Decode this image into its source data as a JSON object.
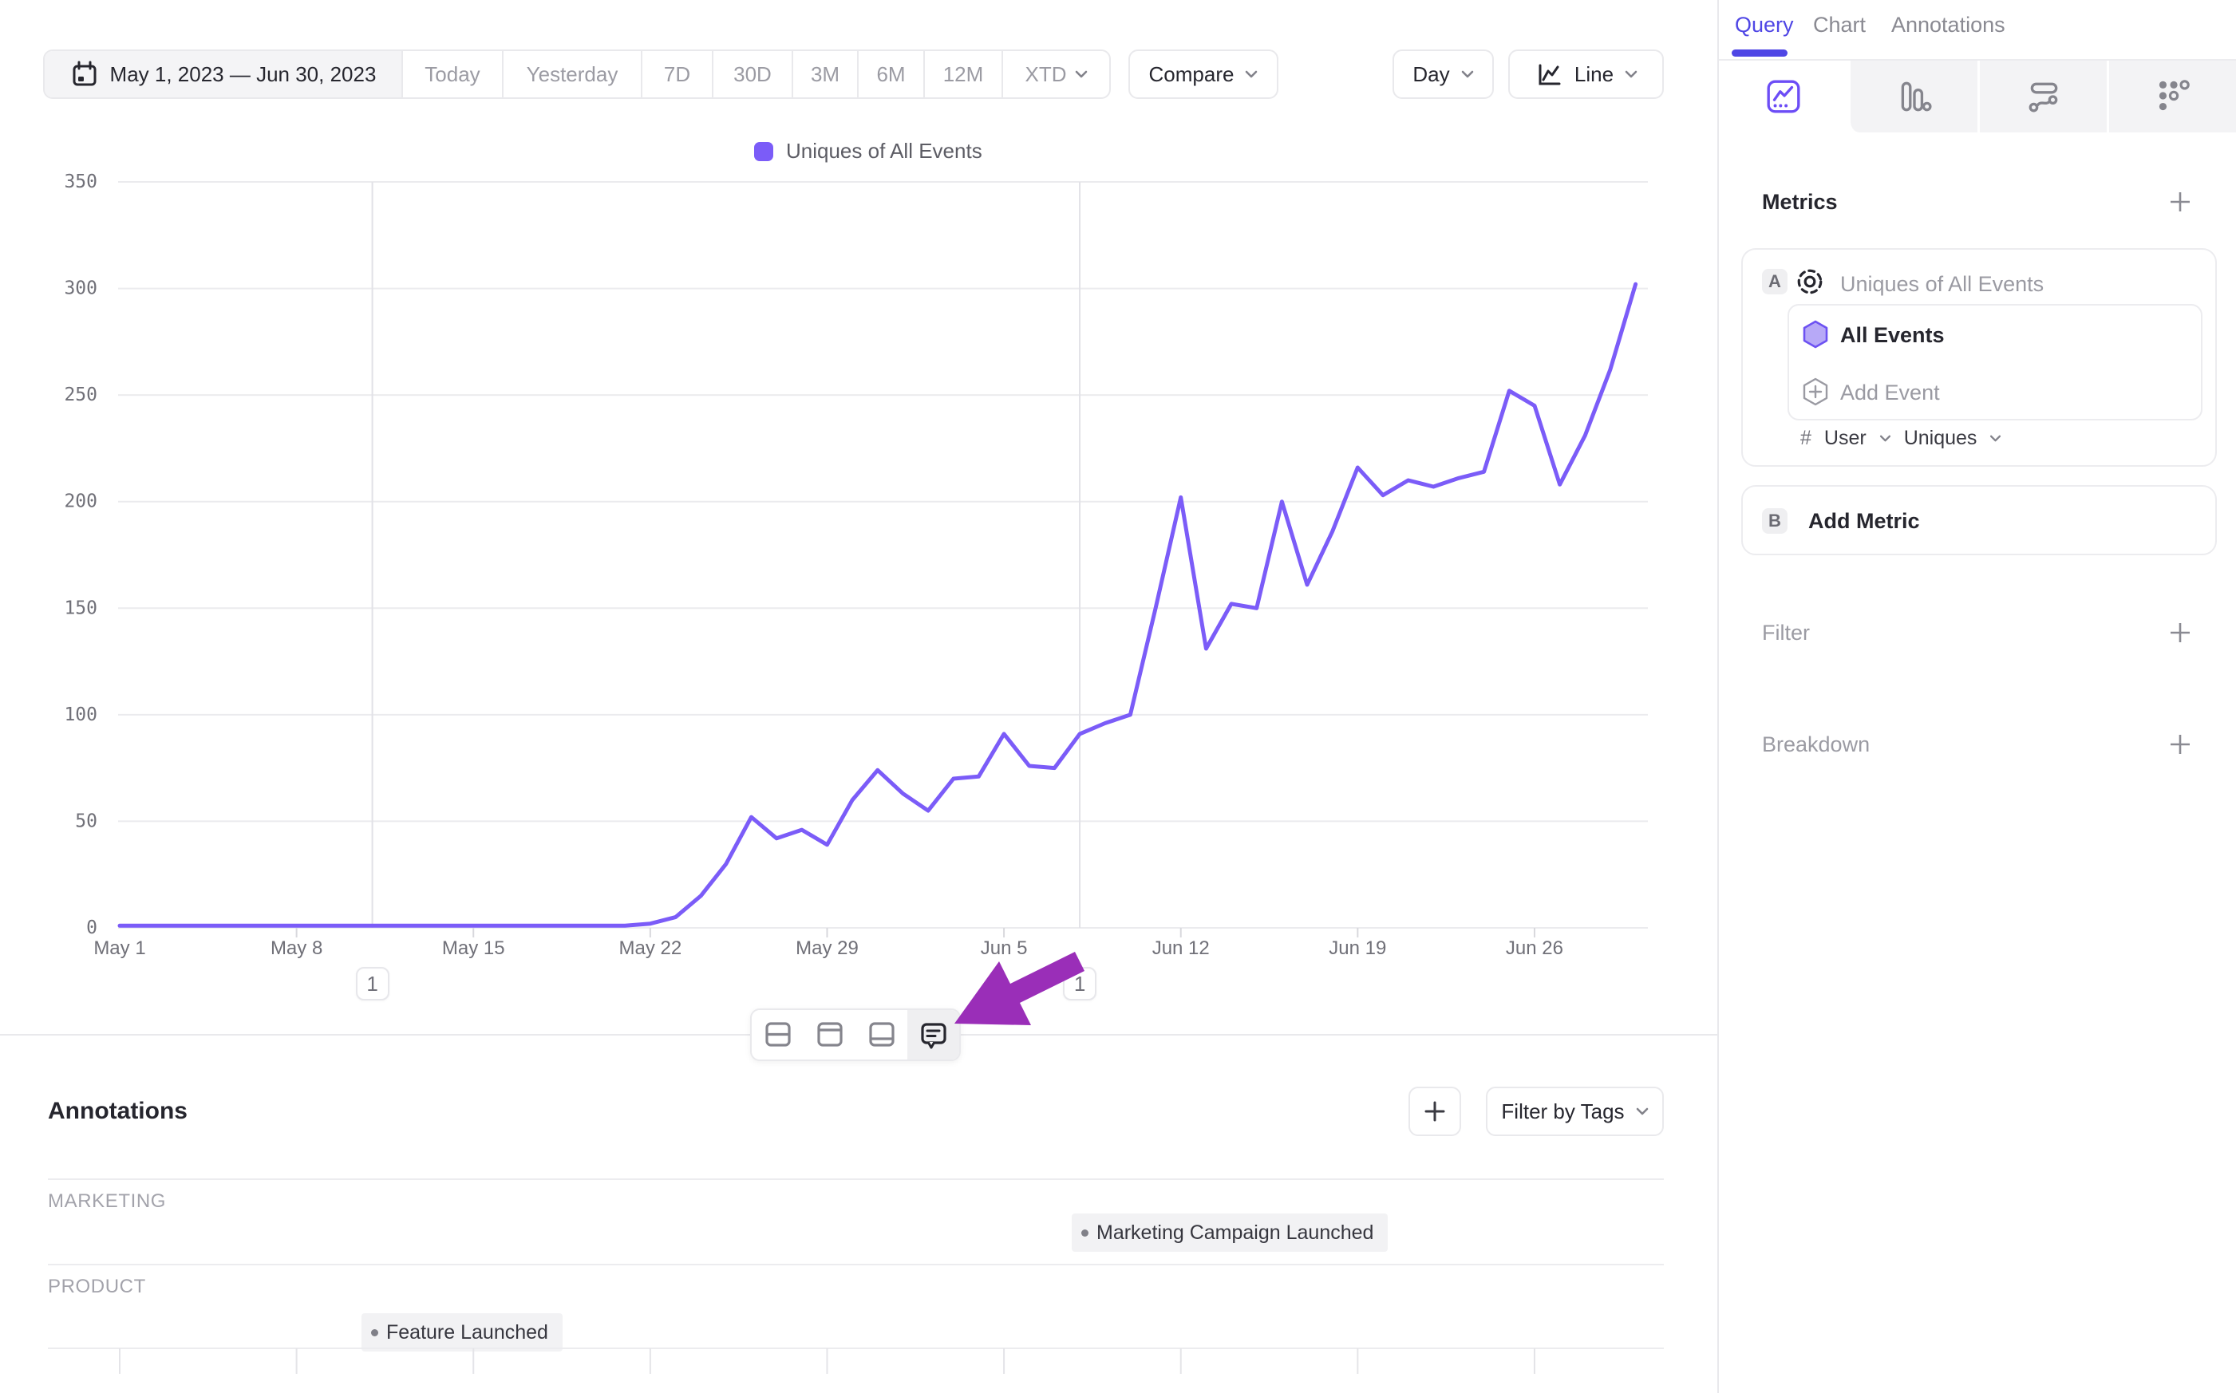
{
  "toolbar": {
    "date_range": "May 1, 2023 — Jun 30, 2023",
    "presets": [
      "Today",
      "Yesterday",
      "7D",
      "30D",
      "3M",
      "6M",
      "12M"
    ],
    "xtd_label": "XTD",
    "compare_label": "Compare",
    "granularity_label": "Day",
    "chart_type_label": "Line"
  },
  "legend": {
    "label": "Uniques of All Events"
  },
  "sidebar": {
    "tabs": {
      "query": "Query",
      "chart": "Chart",
      "annotations": "Annotations"
    },
    "metrics_title": "Metrics",
    "metric": {
      "letter": "A",
      "name": "Uniques of All Events",
      "event": "All Events",
      "add_event": "Add Event",
      "count_symbol": "#",
      "entity": "User",
      "aggregation": "Uniques"
    },
    "add_metric": {
      "letter": "B",
      "label": "Add Metric"
    },
    "filter_label": "Filter",
    "breakdown_label": "Breakdown"
  },
  "annotations_panel": {
    "title": "Annotations",
    "filter_by_tags": "Filter by Tags",
    "groups": [
      {
        "name": "MARKETING",
        "item": "Marketing Campaign Launched"
      },
      {
        "name": "PRODUCT",
        "item": "Feature Launched"
      }
    ]
  },
  "colors": {
    "accent_purple": "#4f46e5",
    "line_purple": "#7b5cf8",
    "callout_arrow": "#9a2eb8"
  },
  "chart_data": {
    "type": "line",
    "series_name": "Uniques of All Events",
    "x_start": "May 1, 2023",
    "x_end": "Jun 30, 2023",
    "granularity": "day",
    "grid": true,
    "legend_position": "top-center",
    "ylim": [
      0,
      350
    ],
    "yticks": [
      0,
      50,
      100,
      150,
      200,
      250,
      300,
      350
    ],
    "x_tick_labels": [
      {
        "day": 0,
        "label": "May 1"
      },
      {
        "day": 7,
        "label": "May 8"
      },
      {
        "day": 14,
        "label": "May 15"
      },
      {
        "day": 21,
        "label": "May 22"
      },
      {
        "day": 28,
        "label": "May 29"
      },
      {
        "day": 35,
        "label": "Jun 5"
      },
      {
        "day": 42,
        "label": "Jun 12"
      },
      {
        "day": 49,
        "label": "Jun 19"
      },
      {
        "day": 56,
        "label": "Jun 26"
      }
    ],
    "values": [
      1,
      1,
      1,
      1,
      1,
      1,
      1,
      1,
      1,
      1,
      1,
      1,
      1,
      1,
      1,
      1,
      1,
      1,
      1,
      1,
      1,
      2,
      5,
      15,
      30,
      52,
      42,
      46,
      39,
      60,
      74,
      63,
      55,
      70,
      71,
      91,
      76,
      75,
      91,
      96,
      100,
      150,
      202,
      131,
      152,
      150,
      200,
      161,
      186,
      216,
      203,
      210,
      207,
      211,
      214,
      252,
      245,
      208,
      231,
      262,
      302
    ],
    "annotation_markers": [
      {
        "day": 10,
        "badge": "1"
      },
      {
        "day": 38,
        "badge": "1"
      }
    ]
  }
}
